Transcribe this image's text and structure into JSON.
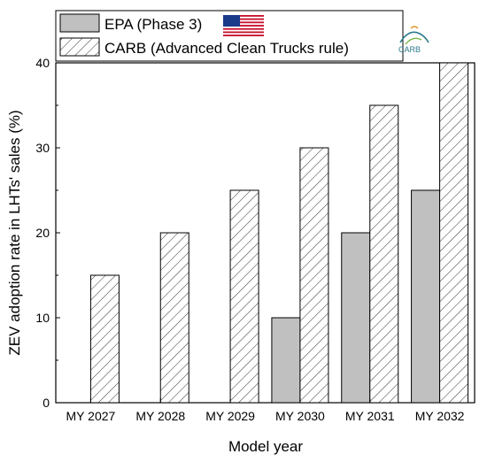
{
  "chart_data": {
    "type": "bar",
    "categories": [
      "MY 2027",
      "MY 2028",
      "MY 2029",
      "MY 2030",
      "MY 2031",
      "MY 2032"
    ],
    "series": [
      {
        "name": "EPA (Phase 3)",
        "values": [
          0,
          0,
          0,
          10,
          20,
          25
        ],
        "color": "#c0c0c0",
        "pattern": "solid"
      },
      {
        "name": "CARB (Advanced Clean Trucks rule)",
        "values": [
          15,
          20,
          25,
          30,
          35,
          40
        ],
        "color": "#ffffff",
        "pattern": "hatched"
      }
    ],
    "xlabel": "Model year",
    "ylabel": "ZEV adoption rate in LHTs' sales (%)",
    "ylim": [
      0,
      40
    ],
    "yticks": [
      0,
      10,
      20,
      30,
      40
    ],
    "legend": {
      "position": "top",
      "icons": [
        "us-flag-icon",
        "carb-logo-icon"
      ],
      "carb_logo_text": "CARB"
    },
    "grid": false
  }
}
